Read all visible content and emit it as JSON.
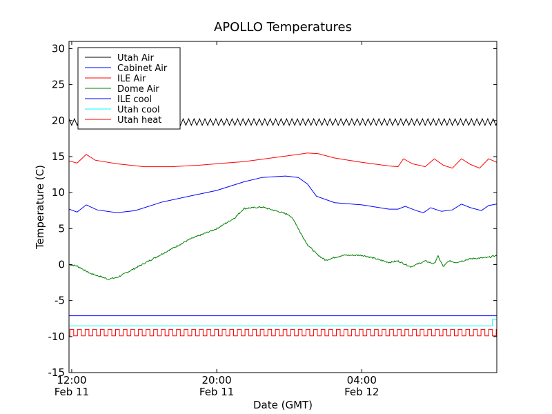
{
  "chart_data": {
    "type": "line",
    "title": "APOLLO Temperatures",
    "xlabel": "Date (GMT)",
    "ylabel": "Temperature (C)",
    "ylim": [
      -15,
      31
    ],
    "xlim": [
      11.85,
      35.45
    ],
    "grid": false,
    "legend_position": "top-left",
    "y_ticks": [
      {
        "value": -15,
        "label": "-15"
      },
      {
        "value": -10,
        "label": "-10"
      },
      {
        "value": -5,
        "label": "-5"
      },
      {
        "value": 0,
        "label": "0"
      },
      {
        "value": 5,
        "label": "5"
      },
      {
        "value": 10,
        "label": "10"
      },
      {
        "value": 15,
        "label": "15"
      },
      {
        "value": 20,
        "label": "20"
      },
      {
        "value": 25,
        "label": "25"
      },
      {
        "value": 30,
        "label": "30"
      }
    ],
    "x_ticks": [
      {
        "value": 12,
        "time": "12:00",
        "date": "Feb 11"
      },
      {
        "value": 20,
        "time": "20:00",
        "date": "Feb 11"
      },
      {
        "value": 28,
        "time": "04:00",
        "date": "Feb 12"
      }
    ],
    "series": [
      {
        "name": "Utah Air",
        "color": "#000000",
        "kind": "oscillate",
        "base": 19.8,
        "amplitude": 0.45,
        "period": 0.3
      },
      {
        "name": "Cabinet Air",
        "color": "#0000ff",
        "kind": "line",
        "x": [
          11.85,
          12.3,
          12.8,
          13.4,
          14.5,
          15.5,
          17,
          18.5,
          20,
          21.5,
          22.5,
          23.8,
          24.5,
          25,
          25.5,
          26.5,
          28,
          29.5,
          30,
          30.4,
          31,
          31.4,
          31.8,
          32.4,
          33,
          33.5,
          34,
          34.6,
          35,
          35.45
        ],
        "y": [
          7.7,
          7.3,
          8.3,
          7.6,
          7.2,
          7.5,
          8.7,
          9.5,
          10.3,
          11.5,
          12.1,
          12.3,
          12.1,
          11.2,
          9.5,
          8.6,
          8.3,
          7.7,
          7.7,
          8.1,
          7.5,
          7.2,
          7.9,
          7.4,
          7.6,
          8.4,
          7.9,
          7.5,
          8.2,
          8.4
        ]
      },
      {
        "name": "ILE Air",
        "color": "#ff0000",
        "kind": "line",
        "x": [
          11.85,
          12.3,
          12.8,
          13.3,
          14.5,
          16,
          17.5,
          19,
          20.5,
          21.5,
          23,
          24.5,
          25,
          25.6,
          26.5,
          28,
          29.5,
          30,
          30.3,
          30.8,
          31.5,
          32,
          32.5,
          33,
          33.5,
          34,
          34.5,
          35,
          35.45
        ],
        "y": [
          14.4,
          14.1,
          15.3,
          14.5,
          14.0,
          13.6,
          13.6,
          13.8,
          14.1,
          14.3,
          14.8,
          15.3,
          15.5,
          15.4,
          14.8,
          14.2,
          13.7,
          13.6,
          14.7,
          14.0,
          13.6,
          14.7,
          13.8,
          13.4,
          14.7,
          13.9,
          13.4,
          14.7,
          14.2
        ]
      },
      {
        "name": "Dome Air",
        "color": "#008000",
        "kind": "line",
        "jitter": 0.2,
        "x": [
          11.85,
          12.3,
          13,
          14,
          14.5,
          15.5,
          17,
          18.5,
          20,
          21,
          21.5,
          22.5,
          23.5,
          24,
          24.3,
          24.6,
          25,
          25.5,
          26,
          26.5,
          27,
          27.5,
          28,
          28.5,
          29.5,
          30,
          30.7,
          31.5,
          32,
          32.2,
          32.5,
          32.8,
          33.2,
          34,
          35,
          35.45
        ],
        "y": [
          0.0,
          -0.2,
          -1.2,
          -2.0,
          -1.8,
          -0.5,
          1.5,
          3.5,
          5.0,
          6.5,
          7.8,
          8.0,
          7.3,
          6.9,
          6.0,
          4.5,
          2.8,
          1.5,
          0.6,
          1.0,
          1.3,
          1.3,
          1.3,
          1.0,
          0.3,
          0.5,
          -0.3,
          0.5,
          0.1,
          1.2,
          -0.3,
          0.5,
          0.3,
          0.8,
          1.0,
          1.3
        ]
      },
      {
        "name": "ILE cool",
        "color": "#0000ff",
        "kind": "flat",
        "value": -7.1
      },
      {
        "name": "Utah cool",
        "color": "#00ffff",
        "kind": "step_once",
        "value": -8.5,
        "step_at": 35.2,
        "step_value": -7.6
      },
      {
        "name": "Utah heat",
        "color": "#ff0000",
        "kind": "square",
        "low": -9.9,
        "high": -9.0,
        "period": 0.42
      }
    ]
  }
}
